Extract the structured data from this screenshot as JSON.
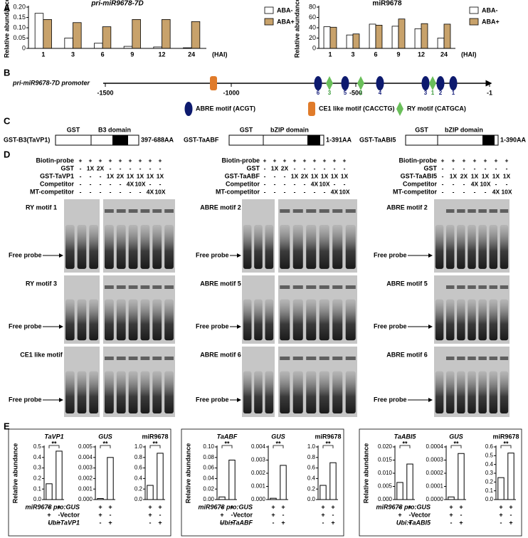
{
  "panel_labels": [
    "A",
    "B",
    "C",
    "D",
    "E"
  ],
  "promoter": {
    "label": "pri-miR9678-7D promoter",
    "axis_labels": [
      "-1500",
      "-1000",
      "-500",
      "-1"
    ],
    "motif_labels": [
      "6",
      "3",
      "5",
      "2",
      "4",
      "3",
      "1",
      "2",
      "1"
    ],
    "legend": [
      "ABRE motif (ACGT)",
      "CE1 like motif (CACCTG)",
      "RY motif (CATGCA)"
    ]
  },
  "constructs": [
    {
      "name": "GST-B3(TaVP1)",
      "tag": "GST",
      "domain": "B3 domain",
      "range": "397-688AA"
    },
    {
      "name": "GST-TaABF",
      "tag": "GST",
      "domain": "bZIP domain",
      "range": "1-391AA"
    },
    {
      "name": "GST-TaABI5",
      "tag": "GST",
      "domain": "bZIP domain",
      "range": "1-390AA"
    }
  ],
  "emsa": [
    {
      "rows": [
        {
          "label": "Biotin-probe",
          "cells": [
            "+",
            "+",
            "+",
            "+",
            "+",
            "+",
            "+",
            "+",
            "+"
          ]
        },
        {
          "label": "GST",
          "cells": [
            "-",
            "1X",
            "2X",
            "-",
            "-",
            "-",
            "-",
            "-",
            "-"
          ]
        },
        {
          "label": "GST-TaVP1",
          "cells": [
            "-",
            "-",
            "-",
            "1X",
            "2X",
            "1X",
            "1X",
            "1X",
            "1X"
          ]
        },
        {
          "label": "Competitor",
          "cells": [
            "-",
            "-",
            "-",
            "-",
            "-",
            "4X",
            "10X",
            "-",
            "-"
          ]
        },
        {
          "label": "MT-competitor",
          "cells": [
            "-",
            "-",
            "-",
            "-",
            "-",
            "-",
            "-",
            "4X",
            "10X"
          ]
        }
      ],
      "gels": [
        {
          "label": "RY motif 1",
          "probe": "Free probe"
        },
        {
          "label": "RY motif 3",
          "probe": "Free probe"
        },
        {
          "label": "CE1 like motif",
          "probe": "Free probe"
        }
      ]
    },
    {
      "rows": [
        {
          "label": "Biotin-probe",
          "cells": [
            "+",
            "+",
            "+",
            "+",
            "+",
            "+",
            "+",
            "+",
            "+"
          ]
        },
        {
          "label": "GST",
          "cells": [
            "-",
            "1X",
            "2X",
            "-",
            "-",
            "-",
            "-",
            "-",
            "-"
          ]
        },
        {
          "label": "GST-TaABF",
          "cells": [
            "-",
            "-",
            "-",
            "1X",
            "2X",
            "1X",
            "1X",
            "1X",
            "1X"
          ]
        },
        {
          "label": "Competitor",
          "cells": [
            "-",
            "-",
            "-",
            "-",
            "-",
            "4X",
            "10X",
            "-",
            "-"
          ]
        },
        {
          "label": "MT-competitor",
          "cells": [
            "-",
            "-",
            "-",
            "-",
            "-",
            "-",
            "-",
            "4X",
            "10X"
          ]
        }
      ],
      "gels": [
        {
          "label": "ABRE motif 2",
          "probe": "Free probe"
        },
        {
          "label": "ABRE motif 5",
          "probe": "Free probe"
        },
        {
          "label": "ABRE motif 6",
          "probe": "Free probe"
        }
      ]
    },
    {
      "rows": [
        {
          "label": "Biotin-probe",
          "cells": [
            "+",
            "+",
            "+",
            "+",
            "+",
            "+",
            "+"
          ]
        },
        {
          "label": "GST",
          "cells": [
            "-",
            "-",
            "-",
            "-",
            "-",
            "-",
            "-"
          ]
        },
        {
          "label": "GST-TaABI5",
          "cells": [
            "-",
            "1X",
            "2X",
            "1X",
            "1X",
            "1X",
            "1X"
          ]
        },
        {
          "label": "Competitor",
          "cells": [
            "-",
            "-",
            "-",
            "4X",
            "10X",
            "-",
            "-"
          ]
        },
        {
          "label": "MT-competitor",
          "cells": [
            "-",
            "-",
            "-",
            "-",
            "-",
            "4X",
            "10X"
          ]
        }
      ],
      "gels": [
        {
          "label": "ABRE motif 2",
          "probe": "Free probe"
        },
        {
          "label": "ABRE motif 5",
          "probe": "Free probe"
        },
        {
          "label": "ABRE motif 6",
          "probe": "Free probe"
        }
      ]
    }
  ],
  "panel_e": [
    {
      "ylabel": "Relative abundance",
      "rows": [
        {
          "label": "miR9678 pro:GUS",
          "cells": [
            "+",
            "+",
            "+",
            "+",
            "+",
            "+"
          ]
        },
        {
          "label": "Vector",
          "cells": [
            "+",
            "-",
            "+",
            "-",
            "+",
            "-"
          ]
        },
        {
          "label": "Ubi:TaVP1",
          "cells": [
            "-",
            "+",
            "-",
            "+",
            "-",
            "+"
          ]
        }
      ]
    },
    {
      "ylabel": "Relative abundance",
      "rows": [
        {
          "label": "miR9678 pro:GUS",
          "cells": [
            "+",
            "+",
            "+",
            "+",
            "+",
            "+"
          ]
        },
        {
          "label": "Vector",
          "cells": [
            "+",
            "-",
            "+",
            "-",
            "+",
            "-"
          ]
        },
        {
          "label": "Ubi:TaABF",
          "cells": [
            "-",
            "+",
            "-",
            "+",
            "-",
            "+"
          ]
        }
      ]
    },
    {
      "ylabel": "Relative abundance",
      "rows": [
        {
          "label": "miR9678 pro:GUS",
          "cells": [
            "+",
            "+",
            "+",
            "+",
            "+",
            "+"
          ]
        },
        {
          "label": "Vector",
          "cells": [
            "+",
            "-",
            "+",
            "-",
            "+",
            "-"
          ]
        },
        {
          "label": "Ubi:TaABI5",
          "cells": [
            "-",
            "+",
            "-",
            "+",
            "-",
            "+"
          ]
        }
      ]
    }
  ],
  "chart_data": [
    {
      "type": "bar",
      "title": "pri-miR9678-7D",
      "italic_title": true,
      "ylabel": "Relative abundance",
      "xlabel": "(HAI)",
      "categories": [
        "1",
        "3",
        "6",
        "9",
        "12",
        "24"
      ],
      "series": [
        {
          "name": "ABA-",
          "color": "#ffffff",
          "values": [
            0.17,
            0.05,
            0.025,
            0.01,
            0.007,
            0.003
          ]
        },
        {
          "name": "ABA+",
          "color": "#c8a26b",
          "values": [
            0.14,
            0.125,
            0.105,
            0.14,
            0.14,
            0.13
          ]
        }
      ],
      "ylim": [
        0,
        0.2
      ],
      "yticks": [
        0,
        0.05,
        {
          "value": 0.1,
          "label": "0.10"
        },
        0.15,
        {
          "value": 0.2,
          "label": "0.20"
        }
      ]
    },
    {
      "type": "bar",
      "title": "miR9678",
      "italic_title": false,
      "ylabel": "Relative abundance",
      "xlabel": "(HAI)",
      "categories": [
        "1",
        "3",
        "6",
        "9",
        "12",
        "24"
      ],
      "series": [
        {
          "name": "ABA-",
          "color": "#ffffff",
          "values": [
            42,
            26,
            47,
            43,
            38,
            20
          ]
        },
        {
          "name": "ABA+",
          "color": "#c8a26b",
          "values": [
            41,
            28,
            45,
            57,
            48,
            47
          ]
        }
      ],
      "ylim": [
        0,
        80
      ],
      "yticks": [
        0,
        20,
        40,
        60,
        80
      ]
    },
    {
      "type": "bar",
      "title": "TaVP1",
      "italic_title": true,
      "values": [
        0.15,
        0.46
      ],
      "color": "#ffffff",
      "annotation": "**",
      "ylim": [
        0,
        0.5
      ],
      "yticks": [
        {
          "value": 0,
          "label": "0.0"
        },
        0.1,
        0.2,
        0.3,
        0.4,
        0.5
      ]
    },
    {
      "type": "bar",
      "title": "GUS",
      "italic_title": true,
      "values": [
        0.0001,
        0.004
      ],
      "color": "#ffffff",
      "annotation": "**",
      "ylim": [
        0,
        0.005
      ],
      "yticks": [
        {
          "value": 0,
          "label": "0.000"
        },
        0.001,
        0.002,
        0.003,
        0.004,
        0.005
      ]
    },
    {
      "type": "bar",
      "title": "miR9678",
      "italic_title": false,
      "values": [
        0.27,
        0.88
      ],
      "color": "#ffffff",
      "annotation": "**",
      "ylim": [
        0,
        1
      ],
      "yticks": [
        {
          "value": 0,
          "label": "0.0"
        },
        0.2,
        0.4,
        0.6,
        0.8,
        {
          "value": 1,
          "label": "1.0"
        }
      ]
    },
    {
      "type": "bar",
      "title": "TaABF",
      "italic_title": true,
      "values": [
        0.005,
        0.075
      ],
      "color": "#ffffff",
      "annotation": "**",
      "ylim": [
        0,
        0.1
      ],
      "yticks": [
        {
          "value": 0,
          "label": "0.00"
        },
        0.02,
        0.04,
        0.06,
        0.08,
        {
          "value": 0.1,
          "label": "0.10"
        }
      ]
    },
    {
      "type": "bar",
      "title": "GUS",
      "italic_title": true,
      "values": [
        0.0001,
        0.0026
      ],
      "color": "#ffffff",
      "annotation": "**",
      "ylim": [
        0,
        0.004
      ],
      "yticks": [
        {
          "value": 0,
          "label": "0.000"
        },
        0.001,
        0.002,
        0.003,
        0.004
      ]
    },
    {
      "type": "bar",
      "title": "miR9678",
      "italic_title": false,
      "values": [
        0.27,
        0.7
      ],
      "color": "#ffffff",
      "annotation": "**",
      "ylim": [
        0,
        1
      ],
      "yticks": [
        {
          "value": 0,
          "label": "0.0"
        },
        0.2,
        0.4,
        0.6,
        0.8,
        {
          "value": 1,
          "label": "1.0"
        }
      ]
    },
    {
      "type": "bar",
      "title": "TaABI5",
      "italic_title": true,
      "values": [
        0.0065,
        0.0135
      ],
      "color": "#ffffff",
      "annotation": "**",
      "ylim": [
        0,
        0.02
      ],
      "yticks": [
        {
          "value": 0,
          "label": "0.000"
        },
        0.005,
        {
          "value": 0.01,
          "label": "0.010"
        },
        0.015,
        {
          "value": 0.02,
          "label": "0.020"
        }
      ]
    },
    {
      "type": "bar",
      "title": "GUS",
      "italic_title": true,
      "values": [
        2e-05,
        0.00035
      ],
      "color": "#ffffff",
      "annotation": "**",
      "ylim": [
        0,
        0.0004
      ],
      "yticks": [
        {
          "value": 0,
          "label": "0.0000"
        },
        0.0001,
        0.0002,
        0.0003,
        0.0004
      ]
    },
    {
      "type": "bar",
      "title": "miR9678",
      "italic_title": false,
      "values": [
        0.25,
        0.53
      ],
      "color": "#ffffff",
      "annotation": "**",
      "ylim": [
        0,
        0.6
      ],
      "yticks": [
        {
          "value": 0,
          "label": "0.0"
        },
        0.1,
        0.2,
        0.3,
        0.4,
        0.5,
        0.6
      ]
    }
  ]
}
